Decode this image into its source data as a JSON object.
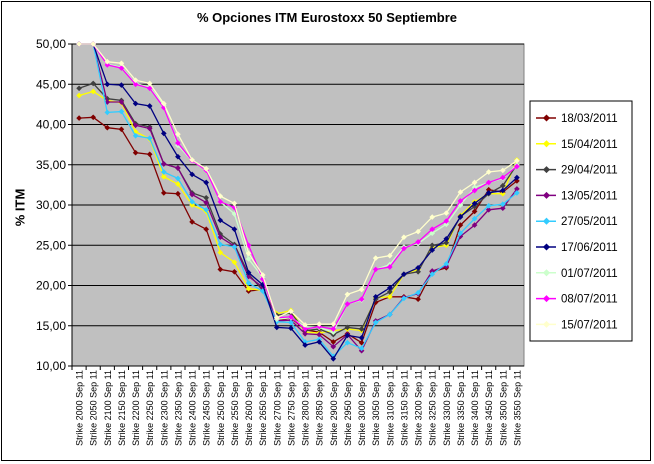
{
  "chart_data": {
    "type": "line",
    "title": "% Opciones ITM Eurostoxx 50 Septiembre",
    "xlabel": "",
    "ylabel": "% ITM",
    "ylim": [
      10,
      50
    ],
    "yticks": [
      "10,00",
      "15,00",
      "20,00",
      "25,00",
      "30,00",
      "35,00",
      "40,00",
      "45,00",
      "50,00"
    ],
    "grid": true,
    "legend_position": "right",
    "categories": [
      "Strike 2000 Sep 11",
      "Strike 2050 Sep 11",
      "Strike 2100 Sep 11",
      "Strike 2150 Sep 11",
      "Strike 2200 Sep 11",
      "Strike 2250 Sep 11",
      "Strike 2300 Sep 11",
      "Strike 2350 Sep 11",
      "Strike 2400 Sep 11",
      "Strike 2450 Sep 11",
      "Strike 2500 Sep 11",
      "Strike 2550 Sep 11",
      "Strike 2600 Sep 11",
      "Strike 2650 Sep 11",
      "Strike 2700 Sep 11",
      "Strike 2750 Sep 11",
      "Strike 2800 Sep 11",
      "Strike 2850 Sep 11",
      "Strike 2900 Sep 11",
      "Strike 2950 Sep 11",
      "Strike 3000 Sep 11",
      "Strike 3050 Sep 11",
      "Strike 3100 Sep 11",
      "Strike 3150 Sep 11",
      "Strike 3200 Sep 11",
      "Strike 3250 Sep 11",
      "Strike 3300 Sep 11",
      "Strike 3350 Sep 11",
      "Strike 3400 Sep 11",
      "Strike 3450 Sep 11",
      "Strike 3500 Sep 11",
      "Strike 3550 Sep 11"
    ],
    "series": [
      {
        "name": "18/03/2011",
        "color": "#800000",
        "values": [
          40.8,
          40.9,
          39.6,
          39.4,
          36.5,
          36.3,
          31.5,
          31.4,
          27.9,
          27.0,
          22.0,
          21.7,
          19.3,
          19.5,
          15.6,
          16.0,
          14.5,
          14.2,
          13.0,
          14.0,
          12.9,
          17.9,
          18.6,
          18.6,
          18.3,
          21.7,
          22.2,
          27.5,
          29.2,
          31.9,
          31.6,
          33.0
        ]
      },
      {
        "name": "15/04/2011",
        "color": "#ffff00",
        "values": [
          43.6,
          44.1,
          43.0,
          42.7,
          39.1,
          38.2,
          33.5,
          32.6,
          30.0,
          29.2,
          24.1,
          22.9,
          19.6,
          19.4,
          16.5,
          16.9,
          14.2,
          14.1,
          14.4,
          14.6,
          14.4,
          18.5,
          18.6,
          21.4,
          22.0,
          24.7,
          25.0,
          28.7,
          30.4,
          31.4,
          31.4,
          35.6
        ]
      },
      {
        "name": "29/04/2011",
        "color": "#404040",
        "values": [
          44.5,
          45.1,
          43.2,
          43.0,
          40.1,
          39.7,
          35.1,
          34.6,
          31.5,
          30.9,
          26.4,
          25.1,
          21.4,
          19.4,
          16.3,
          16.6,
          14.4,
          14.6,
          13.9,
          14.8,
          14.6,
          18.3,
          19.2,
          21.4,
          21.7,
          25.0,
          25.3,
          28.6,
          29.8,
          31.4,
          32.4,
          35.0
        ]
      },
      {
        "name": "13/05/2011",
        "color": "#800080",
        "values": [
          50.0,
          50.0,
          42.8,
          42.8,
          39.9,
          39.5,
          35.1,
          34.6,
          31.3,
          30.3,
          26.0,
          24.9,
          21.1,
          19.8,
          15.6,
          15.7,
          14.0,
          13.9,
          12.4,
          13.9,
          11.9,
          15.6,
          16.4,
          18.5,
          19.0,
          21.8,
          22.4,
          26.1,
          27.5,
          29.4,
          29.6,
          32.0
        ]
      },
      {
        "name": "27/05/2011",
        "color": "#33ccff",
        "values": [
          50.0,
          50.0,
          41.5,
          41.6,
          38.6,
          38.3,
          34.1,
          33.3,
          30.4,
          29.4,
          25.1,
          24.8,
          20.3,
          19.3,
          15.5,
          15.4,
          13.0,
          13.3,
          11.2,
          12.9,
          12.2,
          15.4,
          16.4,
          18.4,
          19.1,
          21.4,
          22.7,
          26.5,
          28.3,
          29.9,
          30.1,
          31.5
        ]
      },
      {
        "name": "17/06/2011",
        "color": "#000080",
        "values": [
          50.0,
          50.0,
          45.0,
          44.9,
          42.6,
          42.3,
          38.9,
          36.0,
          33.8,
          32.8,
          28.1,
          27.0,
          21.6,
          20.1,
          14.8,
          14.7,
          12.6,
          13.0,
          10.9,
          13.8,
          13.5,
          18.6,
          19.7,
          21.4,
          22.2,
          24.4,
          25.8,
          28.5,
          30.2,
          31.5,
          31.8,
          33.4
        ]
      },
      {
        "name": "01/07/2011",
        "color": "#ccffcc",
        "values": [
          50.0,
          50.0,
          47.5,
          47.1,
          45.1,
          44.6,
          42.4,
          37.4,
          35.5,
          34.3,
          30.4,
          28.9,
          23.3,
          21.0,
          15.8,
          16.0,
          14.9,
          14.8,
          14.2,
          17.7,
          18.2,
          22.0,
          22.6,
          24.8,
          25.2,
          26.5,
          27.6,
          30.0,
          32.2,
          32.8,
          33.3,
          35.0
        ]
      },
      {
        "name": "08/07/2011",
        "color": "#ff00ff",
        "values": [
          50.0,
          50.0,
          47.4,
          47.0,
          45.0,
          44.5,
          42.1,
          37.7,
          35.5,
          34.3,
          30.4,
          29.7,
          25.0,
          20.8,
          16.0,
          16.1,
          14.6,
          14.9,
          14.6,
          17.7,
          18.3,
          22.0,
          22.3,
          24.6,
          25.4,
          27.0,
          28.0,
          30.5,
          31.8,
          32.8,
          33.4,
          34.8
        ]
      },
      {
        "name": "15/07/2011",
        "color": "#ffffcc",
        "values": [
          50.0,
          50.0,
          47.8,
          47.6,
          45.5,
          45.1,
          42.6,
          38.8,
          35.6,
          34.5,
          31.1,
          30.2,
          24.0,
          21.3,
          16.0,
          16.8,
          15.1,
          15.2,
          15.2,
          18.9,
          19.5,
          23.4,
          23.7,
          26.0,
          26.7,
          28.5,
          29.0,
          31.6,
          32.8,
          34.1,
          34.3,
          35.5
        ]
      }
    ]
  }
}
